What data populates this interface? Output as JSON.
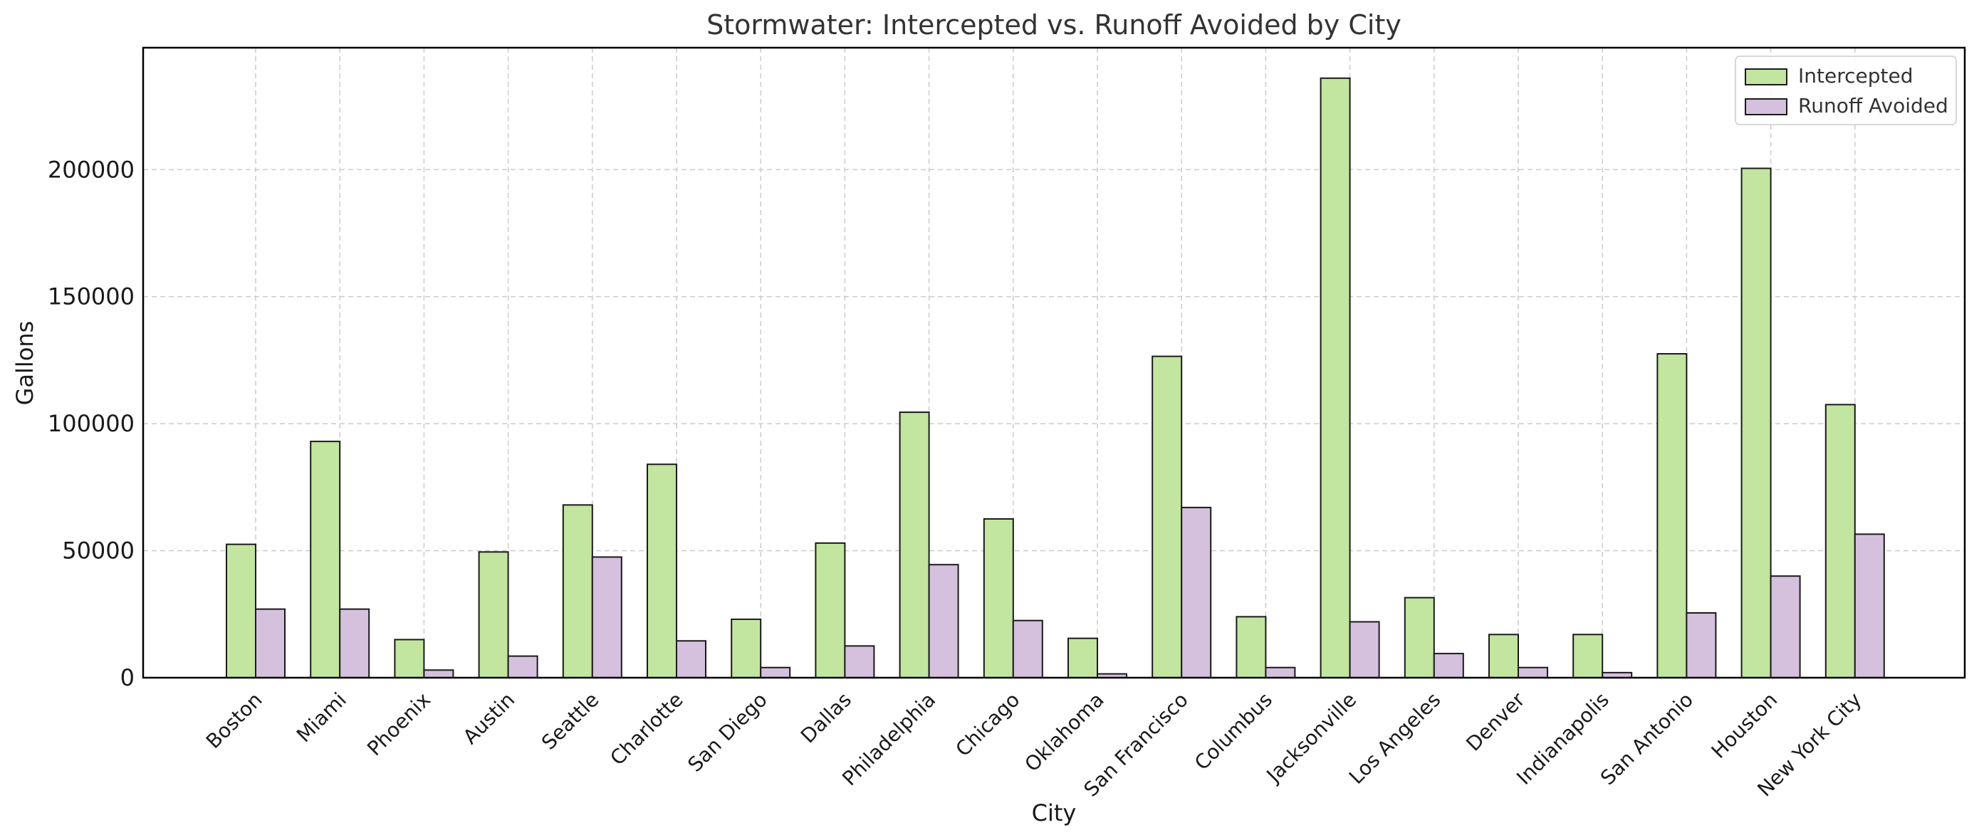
{
  "chart_data": {
    "type": "bar",
    "title": "Stormwater: Intercepted vs. Runoff Avoided by City",
    "xlabel": "City",
    "ylabel": "Gallons",
    "ylim": [
      0,
      248000
    ],
    "yticks": [
      0,
      50000,
      100000,
      150000,
      200000
    ],
    "grid": true,
    "legend_position": "top-right",
    "categories": [
      "Boston",
      "Miami",
      "Phoenix",
      "Austin",
      "Seattle",
      "Charlotte",
      "San Diego",
      "Dallas",
      "Philadelphia",
      "Chicago",
      "Oklahoma",
      "San Francisco",
      "Columbus",
      "Jacksonville",
      "Los Angeles",
      "Denver",
      "Indianapolis",
      "San Antonio",
      "Houston",
      "New York City"
    ],
    "series": [
      {
        "name": "Intercepted",
        "color": "#c2e59f",
        "values": [
          52500,
          93000,
          15000,
          49500,
          68000,
          84000,
          23000,
          53000,
          104500,
          62500,
          15500,
          126500,
          24000,
          236000,
          31500,
          17000,
          17000,
          127500,
          200500,
          107500
        ]
      },
      {
        "name": "Runoff Avoided",
        "color": "#d5c0de",
        "values": [
          27000,
          27000,
          3000,
          8500,
          47500,
          14500,
          4000,
          12500,
          44500,
          22500,
          1500,
          67000,
          4000,
          22000,
          9500,
          4000,
          2000,
          25500,
          40000,
          56500
        ]
      }
    ]
  }
}
